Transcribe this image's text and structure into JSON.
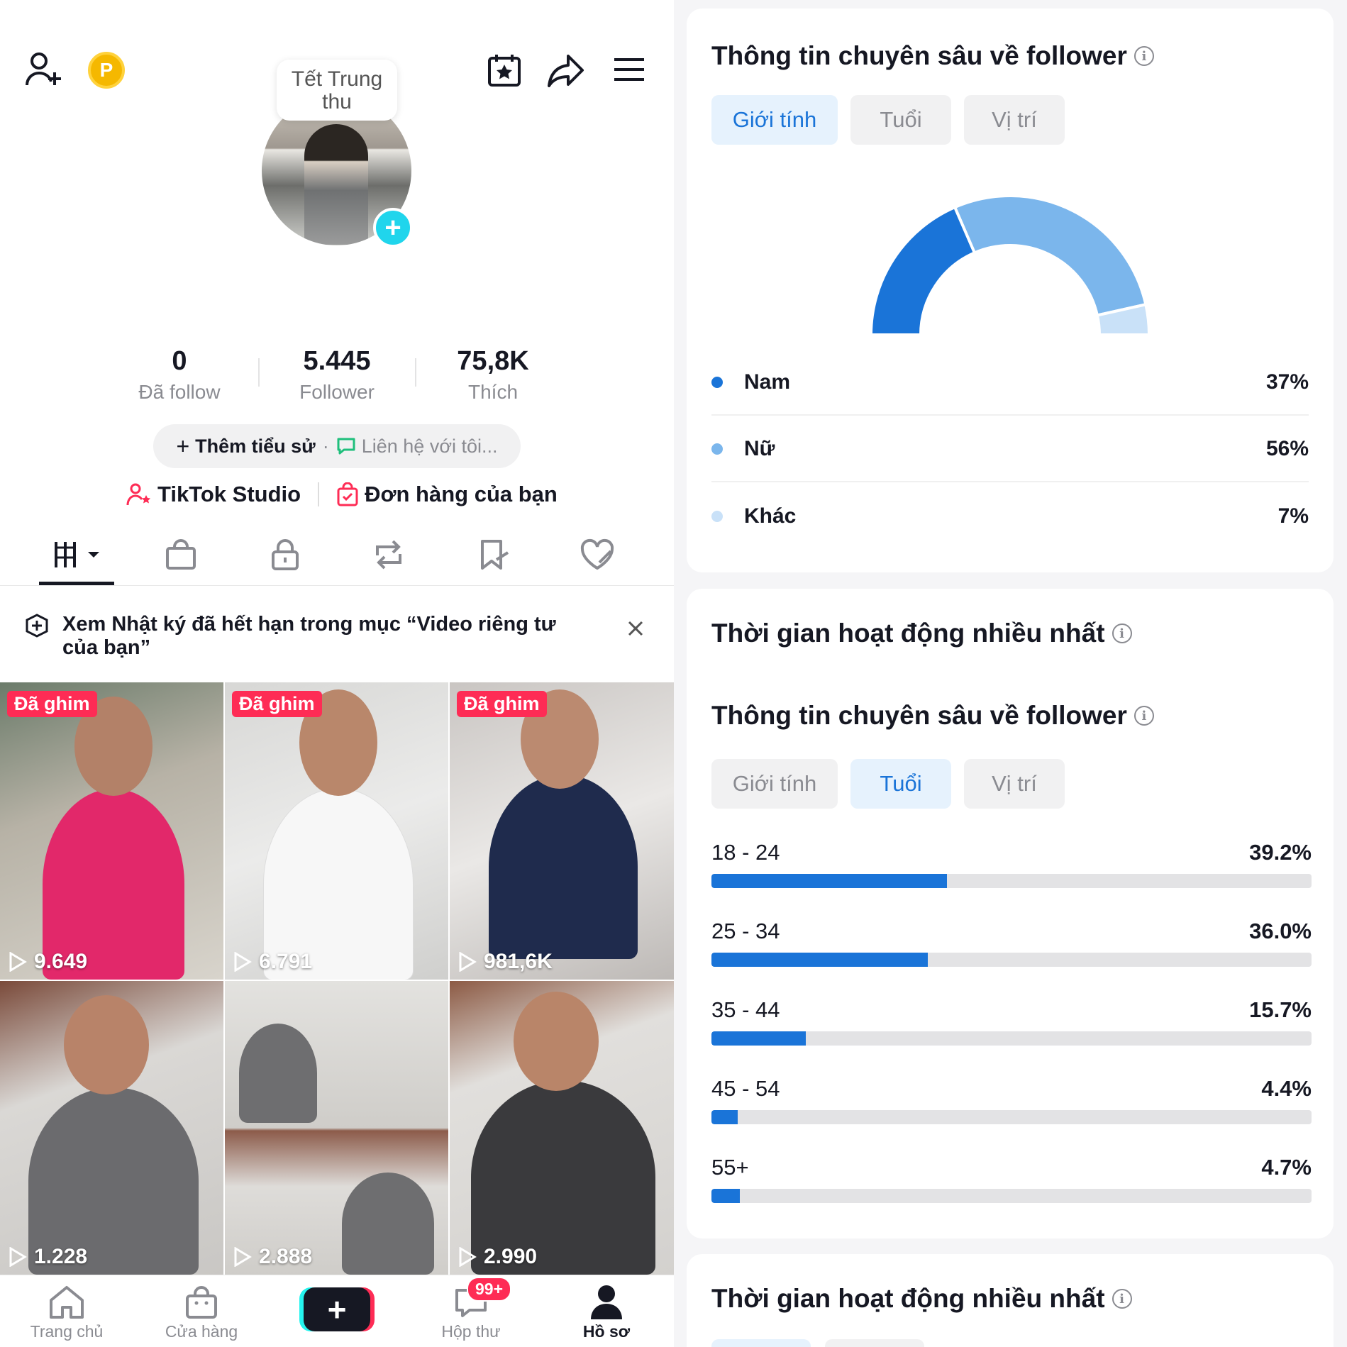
{
  "profile": {
    "topbar_icons": [
      "add-friend-icon",
      "coin-icon",
      "calendar-star-icon",
      "share-icon",
      "menu-icon"
    ],
    "coin_label": "P",
    "bubble_text": "Tết Trung thu",
    "stats": [
      {
        "num": "0",
        "label": "Đã follow"
      },
      {
        "num": "5.445",
        "label": "Follower"
      },
      {
        "num": "75,8K",
        "label": "Thích"
      }
    ],
    "bio_add": "Thêm tiểu sử",
    "bio_contact": "Liên hệ với tôi...",
    "studio_label": "TikTok Studio",
    "orders_label": "Đơn hàng của bạn",
    "tabs": [
      "videos-grid-icon",
      "shop-bag-icon",
      "lock-icon",
      "repost-icon",
      "saved-icon",
      "liked-icon"
    ],
    "notice": "Xem Nhật ký đã hết hạn trong mục “Video riêng tư của bạn”",
    "videos": [
      {
        "pinned": "Đã ghim",
        "views": "9.649"
      },
      {
        "pinned": "Đã ghim",
        "views": "6.791"
      },
      {
        "pinned": "Đã ghim",
        "views": "981,6K"
      },
      {
        "pinned": "",
        "views": "1.228"
      },
      {
        "pinned": "",
        "views": "2.888"
      },
      {
        "pinned": "",
        "views": "2.990"
      }
    ],
    "nav": [
      {
        "label": "Trang chủ",
        "icon": "home-icon"
      },
      {
        "label": "Cửa hàng",
        "icon": "shop-icon"
      },
      {
        "label": "",
        "icon": "create-icon"
      },
      {
        "label": "Hộp thư",
        "icon": "inbox-icon"
      },
      {
        "label": "Hồ sơ",
        "icon": "profile-icon"
      }
    ],
    "inbox_badge": "99+"
  },
  "insights": {
    "follower_title": "Thông tin chuyên sâu về follower",
    "tabs": [
      "Giới tính",
      "Tuổi",
      "Vị trí"
    ],
    "gender": [
      {
        "label": "Nam",
        "value": "37%",
        "pct": 37,
        "color": "#1a74d8"
      },
      {
        "label": "Nữ",
        "value": "56%",
        "pct": 56,
        "color": "#7bb6ec"
      },
      {
        "label": "Khác",
        "value": "7%",
        "pct": 7,
        "color": "#c9e1f8"
      }
    ],
    "activity_title": "Thời gian hoạt động nhiều nhất",
    "follower_title_2": "Thông tin chuyên sâu về follower",
    "ages": [
      {
        "label": "18 - 24",
        "value": "39.2%",
        "pct": 39.2
      },
      {
        "label": "25 - 34",
        "value": "36.0%",
        "pct": 36.0
      },
      {
        "label": "35 - 44",
        "value": "15.7%",
        "pct": 15.7
      },
      {
        "label": "45 - 54",
        "value": "4.4%",
        "pct": 4.4
      },
      {
        "label": "55+",
        "value": "4.7%",
        "pct": 4.7
      }
    ],
    "activity_title_2": "Thời gian hoạt động nhiều nhất"
  },
  "chart_data": [
    {
      "type": "pie",
      "categories": [
        "Nam",
        "Nữ",
        "Khác"
      ],
      "values": [
        37,
        56,
        7
      ]
    },
    {
      "type": "bar",
      "categories": [
        "18 - 24",
        "25 - 34",
        "35 - 44",
        "45 - 54",
        "55+"
      ],
      "values": [
        39.2,
        36.0,
        15.7,
        4.4,
        4.7
      ]
    }
  ]
}
